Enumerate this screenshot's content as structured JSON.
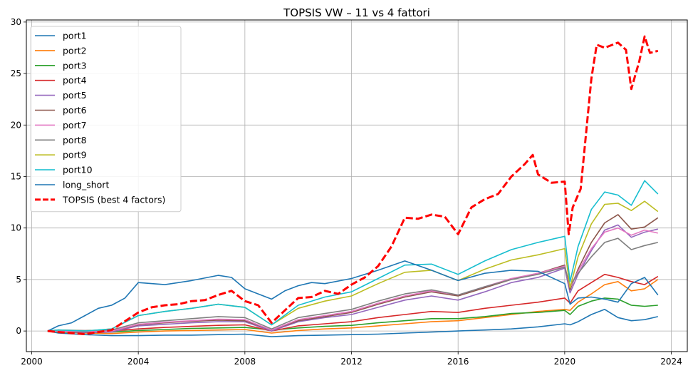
{
  "chart_data": {
    "type": "line",
    "title": "TOPSIS VW – 11 vs 4 fattori",
    "xlabel": "",
    "ylabel": "",
    "xlim": [
      1999.8,
      2024.6
    ],
    "ylim": [
      -2,
      30.2
    ],
    "x_ticks": [
      2000,
      2004,
      2008,
      2012,
      2016,
      2020,
      2024
    ],
    "y_ticks": [
      0,
      5,
      10,
      15,
      20,
      25,
      30
    ],
    "grid": true,
    "legend_position": "top-left",
    "series": [
      {
        "name": "port1",
        "color": "#1f77b4",
        "dash": "solid",
        "x": [
          2000.6,
          2001,
          2002,
          2003,
          2004,
          2005,
          2006,
          2007,
          2008,
          2009,
          2010,
          2011,
          2012,
          2013,
          2014,
          2015,
          2016,
          2017,
          2018,
          2019,
          2020,
          2020.2,
          2020.5,
          2021,
          2021.5,
          2022,
          2022.5,
          2023,
          2023.5
        ],
        "values": [
          0,
          -0.2,
          -0.35,
          -0.45,
          -0.45,
          -0.4,
          -0.4,
          -0.35,
          -0.3,
          -0.55,
          -0.45,
          -0.4,
          -0.35,
          -0.3,
          -0.2,
          -0.1,
          0.0,
          0.1,
          0.2,
          0.4,
          0.7,
          0.6,
          0.9,
          1.6,
          2.1,
          1.3,
          1.0,
          1.1,
          1.4
        ]
      },
      {
        "name": "port2",
        "color": "#ff7f0e",
        "dash": "solid",
        "x": [
          2000.6,
          2001,
          2002,
          2003,
          2004,
          2005,
          2006,
          2007,
          2008,
          2009,
          2010,
          2011,
          2012,
          2013,
          2014,
          2015,
          2016,
          2017,
          2018,
          2019,
          2020,
          2020.2,
          2020.5,
          2021,
          2021.5,
          2022,
          2022.5,
          2023,
          2023.5
        ],
        "values": [
          0,
          -0.1,
          -0.2,
          -0.25,
          -0.1,
          0.0,
          0.05,
          0.1,
          0.15,
          -0.2,
          0.05,
          0.2,
          0.3,
          0.5,
          0.7,
          0.9,
          1.0,
          1.3,
          1.6,
          1.9,
          2.1,
          2.0,
          2.8,
          3.6,
          4.5,
          4.8,
          3.9,
          4.1,
          5.0
        ]
      },
      {
        "name": "port3",
        "color": "#2ca02c",
        "dash": "solid",
        "x": [
          2000.6,
          2001,
          2002,
          2003,
          2004,
          2005,
          2006,
          2007,
          2008,
          2009,
          2010,
          2011,
          2012,
          2013,
          2014,
          2015,
          2016,
          2017,
          2018,
          2019,
          2020,
          2020.2,
          2020.5,
          2021,
          2021.5,
          2022,
          2022.5,
          2023,
          2023.5
        ],
        "values": [
          0,
          -0.1,
          -0.15,
          -0.1,
          0.05,
          0.15,
          0.25,
          0.3,
          0.35,
          0.1,
          0.3,
          0.45,
          0.55,
          0.8,
          1.0,
          1.2,
          1.2,
          1.4,
          1.7,
          1.8,
          2.0,
          1.6,
          2.4,
          2.9,
          3.2,
          3.1,
          2.5,
          2.4,
          2.5
        ]
      },
      {
        "name": "port4",
        "color": "#d62728",
        "dash": "solid",
        "x": [
          2000.6,
          2001,
          2002,
          2003,
          2004,
          2005,
          2006,
          2007,
          2008,
          2009,
          2010,
          2011,
          2012,
          2013,
          2014,
          2015,
          2016,
          2017,
          2018,
          2019,
          2020,
          2020.2,
          2020.5,
          2021,
          2021.5,
          2022,
          2022.5,
          2023,
          2023.5
        ],
        "values": [
          0,
          0.0,
          -0.05,
          0.0,
          0.2,
          0.35,
          0.45,
          0.55,
          0.6,
          0.0,
          0.5,
          0.7,
          0.9,
          1.3,
          1.6,
          1.9,
          1.8,
          2.2,
          2.5,
          2.8,
          3.2,
          2.7,
          3.9,
          4.7,
          5.5,
          5.2,
          4.8,
          4.5,
          5.3
        ]
      },
      {
        "name": "port5",
        "color": "#9467bd",
        "dash": "solid",
        "x": [
          2000.6,
          2001,
          2002,
          2003,
          2004,
          2005,
          2006,
          2007,
          2008,
          2009,
          2010,
          2011,
          2012,
          2013,
          2014,
          2015,
          2016,
          2017,
          2018,
          2019,
          2020,
          2020.2,
          2020.5,
          2021,
          2021.5,
          2022,
          2022.5,
          2023,
          2023.5
        ],
        "values": [
          0,
          -0.05,
          -0.15,
          -0.1,
          0.5,
          0.65,
          0.8,
          0.9,
          0.9,
          0.0,
          0.9,
          1.3,
          1.6,
          2.3,
          3.0,
          3.4,
          3.0,
          3.8,
          4.7,
          5.2,
          6.1,
          3.7,
          5.5,
          7.8,
          9.8,
          10.3,
          9.1,
          9.6,
          9.9
        ]
      },
      {
        "name": "port6",
        "color": "#8c564b",
        "dash": "solid",
        "x": [
          2000.6,
          2001,
          2002,
          2003,
          2004,
          2005,
          2006,
          2007,
          2008,
          2009,
          2010,
          2011,
          2012,
          2013,
          2014,
          2015,
          2016,
          2017,
          2018,
          2019,
          2020,
          2020.2,
          2020.5,
          2021,
          2021.5,
          2022,
          2022.5,
          2023,
          2023.5
        ],
        "values": [
          0,
          0.0,
          -0.1,
          0.0,
          0.6,
          0.8,
          0.95,
          1.05,
          1.0,
          0.1,
          1.0,
          1.4,
          1.8,
          2.6,
          3.3,
          3.8,
          3.4,
          4.2,
          5.0,
          5.6,
          6.4,
          4.0,
          6.0,
          8.6,
          10.5,
          11.3,
          9.9,
          10.1,
          11.0
        ]
      },
      {
        "name": "port7",
        "color": "#e377c2",
        "dash": "solid",
        "x": [
          2000.6,
          2001,
          2002,
          2003,
          2004,
          2005,
          2006,
          2007,
          2008,
          2009,
          2010,
          2011,
          2012,
          2013,
          2014,
          2015,
          2016,
          2017,
          2018,
          2019,
          2020,
          2020.2,
          2020.5,
          2021,
          2021.5,
          2022,
          2022.5,
          2023,
          2023.5
        ],
        "values": [
          0,
          0.0,
          -0.05,
          0.0,
          0.65,
          0.85,
          1.0,
          1.15,
          1.1,
          0.1,
          1.1,
          1.5,
          1.9,
          2.7,
          3.4,
          3.9,
          3.5,
          4.3,
          5.1,
          5.6,
          6.3,
          4.2,
          5.8,
          8.0,
          9.6,
          10.0,
          9.3,
          9.8,
          9.5
        ]
      },
      {
        "name": "port8",
        "color": "#7f7f7f",
        "dash": "solid",
        "x": [
          2000.6,
          2001,
          2002,
          2003,
          2004,
          2005,
          2006,
          2007,
          2008,
          2009,
          2010,
          2011,
          2012,
          2013,
          2014,
          2015,
          2016,
          2017,
          2018,
          2019,
          2020,
          2020.2,
          2020.5,
          2021,
          2021.5,
          2022,
          2022.5,
          2023,
          2023.5
        ],
        "values": [
          0,
          0.1,
          0.05,
          0.1,
          0.8,
          1.0,
          1.2,
          1.4,
          1.3,
          0.2,
          1.3,
          1.7,
          2.1,
          2.9,
          3.6,
          4.0,
          3.5,
          4.3,
          5.0,
          5.5,
          6.2,
          4.4,
          5.6,
          7.2,
          8.6,
          9.0,
          7.9,
          8.3,
          8.6
        ]
      },
      {
        "name": "port9",
        "color": "#bcbd22",
        "dash": "solid",
        "x": [
          2000.6,
          2001,
          2002,
          2003,
          2004,
          2005,
          2006,
          2007,
          2008,
          2009,
          2010,
          2011,
          2012,
          2013,
          2014,
          2015,
          2016,
          2017,
          2018,
          2019,
          2020,
          2020.2,
          2020.5,
          2021,
          2021.5,
          2022,
          2022.5,
          2023,
          2023.5
        ],
        "values": [
          0,
          0.1,
          0.0,
          0.2,
          1.5,
          1.9,
          2.2,
          2.6,
          2.3,
          0.6,
          2.2,
          2.9,
          3.4,
          4.6,
          5.7,
          5.9,
          4.9,
          6.0,
          6.9,
          7.4,
          8.0,
          4.2,
          7.2,
          10.4,
          12.3,
          12.4,
          11.7,
          12.6,
          11.6
        ]
      },
      {
        "name": "port10",
        "color": "#17becf",
        "dash": "solid",
        "x": [
          2000.6,
          2001,
          2002,
          2003,
          2004,
          2005,
          2006,
          2007,
          2008,
          2009,
          2010,
          2011,
          2012,
          2013,
          2014,
          2015,
          2016,
          2017,
          2018,
          2019,
          2020,
          2020.2,
          2020.5,
          2021,
          2021.5,
          2022,
          2022.5,
          2023,
          2023.5
        ],
        "values": [
          0,
          0.1,
          0.0,
          0.2,
          1.5,
          1.9,
          2.2,
          2.6,
          2.3,
          0.6,
          2.5,
          3.3,
          3.8,
          5.1,
          6.4,
          6.5,
          5.5,
          6.8,
          7.9,
          8.6,
          9.2,
          4.8,
          8.2,
          11.8,
          13.5,
          13.2,
          12.2,
          14.6,
          13.3
        ]
      },
      {
        "name": "long_short",
        "color": "#1f77b4",
        "dash": "solid",
        "x": [
          2000.6,
          2001,
          2001.5,
          2002,
          2002.5,
          2003,
          2003.5,
          2004,
          2005,
          2006,
          2007,
          2007.5,
          2008,
          2008.5,
          2009,
          2009.5,
          2010,
          2010.5,
          2011,
          2012,
          2013,
          2014,
          2015,
          2016,
          2017,
          2018,
          2019,
          2020,
          2020.2,
          2020.5,
          2021,
          2021.5,
          2022,
          2022.5,
          2023,
          2023.5
        ],
        "values": [
          0,
          0.5,
          0.8,
          1.5,
          2.2,
          2.5,
          3.2,
          4.7,
          4.5,
          4.9,
          5.4,
          5.2,
          4.1,
          3.6,
          3.1,
          3.9,
          4.4,
          4.7,
          4.6,
          5.1,
          5.9,
          6.8,
          5.9,
          4.9,
          5.6,
          5.9,
          5.8,
          4.6,
          2.6,
          3.2,
          3.3,
          3.1,
          2.8,
          4.6,
          5.2,
          3.5
        ]
      },
      {
        "name": "TOPSIS (best 4 factors)",
        "color": "#ff0000",
        "dash": "dashed",
        "x": [
          2000.6,
          2001,
          2002,
          2003,
          2004,
          2004.5,
          2005,
          2005.5,
          2006,
          2006.5,
          2007,
          2007.5,
          2008,
          2008.5,
          2009,
          2009.5,
          2010,
          2010.5,
          2011,
          2011.5,
          2012,
          2012.5,
          2013,
          2013.5,
          2014,
          2014.5,
          2015,
          2015.5,
          2016,
          2016.5,
          2017,
          2017.5,
          2018,
          2018.5,
          2018.8,
          2019,
          2019.5,
          2020,
          2020.15,
          2020.3,
          2020.6,
          2021,
          2021.2,
          2021.5,
          2022,
          2022.3,
          2022.5,
          2022.8,
          2023,
          2023.2,
          2023.5
        ],
        "values": [
          0,
          -0.1,
          -0.3,
          0.1,
          1.8,
          2.3,
          2.5,
          2.6,
          2.9,
          3.0,
          3.5,
          3.9,
          2.9,
          2.5,
          0.8,
          2.0,
          3.2,
          3.3,
          3.9,
          3.6,
          4.5,
          5.2,
          6.3,
          8.2,
          11.0,
          10.9,
          11.3,
          11.1,
          9.4,
          12.0,
          12.8,
          13.3,
          15.0,
          16.2,
          17.1,
          15.2,
          14.4,
          14.5,
          9.4,
          12.0,
          13.8,
          24.5,
          27.8,
          27.5,
          28.0,
          27.3,
          23.5,
          26.2,
          28.6,
          27.0,
          27.2
        ]
      }
    ]
  }
}
